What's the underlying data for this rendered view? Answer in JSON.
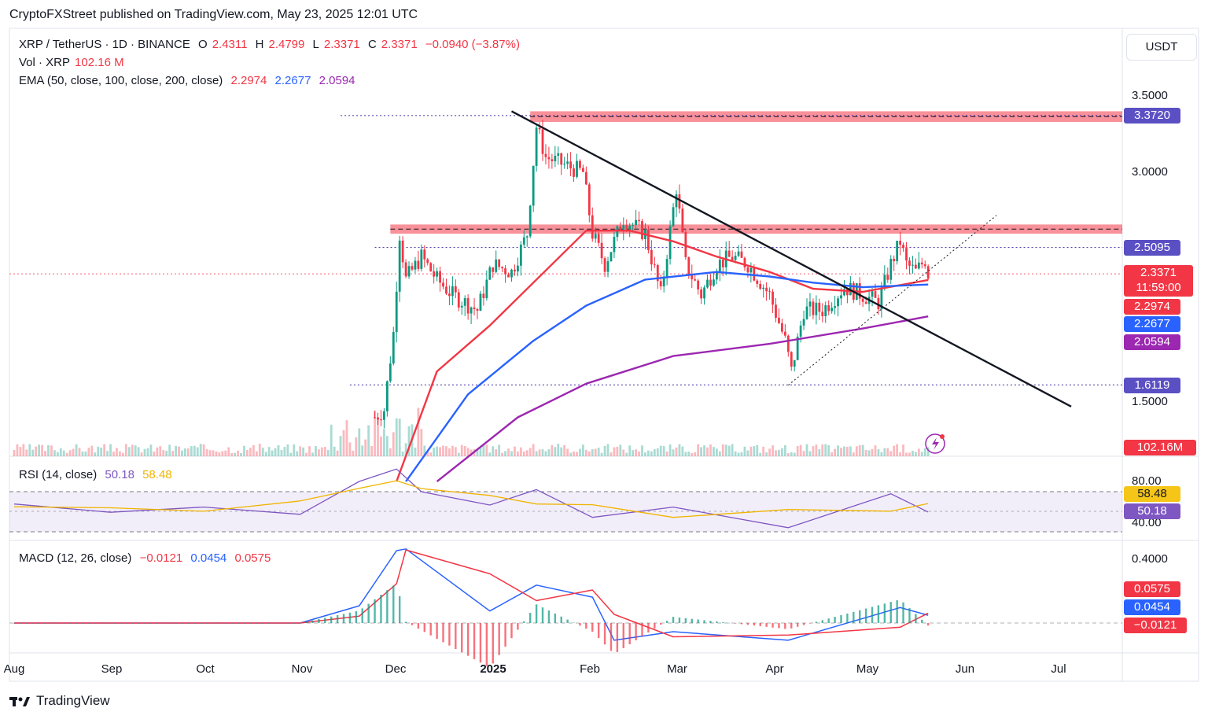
{
  "header": {
    "published": "CryptoFXStreet published on TradingView.com, May 23, 2025 12:01 UTC"
  },
  "legend": {
    "symbol": "XRP / TetherUS · 1D · BINANCE",
    "o_label": "O",
    "o": "2.4311",
    "h_label": "H",
    "h": "2.4799",
    "l_label": "L",
    "l": "2.3371",
    "c_label": "C",
    "c": "2.3371",
    "change": "−0.0940 (−3.87%)",
    "vol_label": "Vol · XRP",
    "vol": "102.16 M",
    "ema_label": "EMA (50, close, 100, close, 200, close)",
    "ema50": "2.2974",
    "ema100": "2.2677",
    "ema200": "2.0594",
    "rsi_label": "RSI (14, close)",
    "rsi": "50.18",
    "rsi_ma": "58.48",
    "macd_label": "MACD (12, 26, close)",
    "macd_hist": "−0.0121",
    "macd": "0.0454",
    "macd_signal": "0.0575"
  },
  "currency_button": "USDT",
  "price_axis": {
    "ticks": [
      "3.5000",
      "3.0000",
      "1.5000"
    ]
  },
  "price_tags": {
    "resistance_top": "3.3720",
    "level_mid": "2.5095",
    "last": "2.3371",
    "countdown": "11:59:00",
    "ema50": "2.2974",
    "ema100": "2.2677",
    "ema200": "2.0594",
    "support": "1.6119",
    "volume": "102.16M"
  },
  "rsi_axis": {
    "ticks": [
      "80.00",
      "40.00"
    ],
    "tag_ma": "58.48",
    "tag_rsi": "50.18"
  },
  "macd_axis": {
    "ticks": [
      "0.4000"
    ],
    "tag_signal": "0.0575",
    "tag_macd": "0.0454",
    "tag_hist": "−0.0121"
  },
  "time_axis": [
    "Aug",
    "Sep",
    "Oct",
    "Nov",
    "Dec",
    "2025",
    "Feb",
    "Mar",
    "Apr",
    "May",
    "Jun",
    "Jul"
  ],
  "brand": "TradingView",
  "colors": {
    "up": "#089981",
    "down": "#f23645",
    "ema50": "#f23645",
    "ema100": "#2962ff",
    "ema200": "#9c27b0",
    "rsi": "#7e57c2",
    "rsi_ma": "#f0b400",
    "zone": "#f23645"
  },
  "chart_data": {
    "type": "candlestick",
    "symbol": "XRP / TetherUS",
    "interval": "1D",
    "last_close": 2.3371,
    "horizontal_levels": [
      3.372,
      2.5095,
      1.6119
    ],
    "resistance_zones": [
      [
        3.33,
        3.4
      ],
      [
        2.6,
        2.66
      ]
    ],
    "ema": {
      "ema50": 2.2974,
      "ema100": 2.2677,
      "ema200": 2.0594
    },
    "ema50_path": [
      [
        "2024-12-02",
        0.98
      ],
      [
        "2024-12-15",
        1.7
      ],
      [
        "2025-01-01",
        2.0
      ],
      [
        "2025-01-15",
        2.28
      ],
      [
        "2025-02-01",
        2.62
      ],
      [
        "2025-02-15",
        2.62
      ],
      [
        "2025-03-01",
        2.55
      ],
      [
        "2025-03-15",
        2.45
      ],
      [
        "2025-04-01",
        2.35
      ],
      [
        "2025-04-15",
        2.24
      ],
      [
        "2025-05-01",
        2.22
      ],
      [
        "2025-05-22",
        2.2974
      ]
    ],
    "ema100_path": [
      [
        "2024-12-05",
        0.98
      ],
      [
        "2024-12-25",
        1.55
      ],
      [
        "2025-01-15",
        1.9
      ],
      [
        "2025-02-01",
        2.13
      ],
      [
        "2025-02-20",
        2.3
      ],
      [
        "2025-03-15",
        2.35
      ],
      [
        "2025-04-01",
        2.32
      ],
      [
        "2025-04-15",
        2.28
      ],
      [
        "2025-05-01",
        2.25
      ],
      [
        "2025-05-22",
        2.2677
      ]
    ],
    "ema200_path": [
      [
        "2024-12-15",
        0.98
      ],
      [
        "2025-01-10",
        1.4
      ],
      [
        "2025-02-01",
        1.62
      ],
      [
        "2025-03-01",
        1.8
      ],
      [
        "2025-04-01",
        1.88
      ],
      [
        "2025-05-01",
        1.98
      ],
      [
        "2025-05-22",
        2.0594
      ]
    ],
    "close_path": [
      [
        "2024-11-25",
        1.4
      ],
      [
        "2024-11-28",
        1.45
      ],
      [
        "2024-12-01",
        1.95
      ],
      [
        "2024-12-03",
        2.6
      ],
      [
        "2024-12-05",
        2.3
      ],
      [
        "2024-12-10",
        2.45
      ],
      [
        "2024-12-15",
        2.3
      ],
      [
        "2024-12-20",
        2.2
      ],
      [
        "2024-12-28",
        2.1
      ],
      [
        "2025-01-02",
        2.4
      ],
      [
        "2025-01-08",
        2.35
      ],
      [
        "2025-01-13",
        2.6
      ],
      [
        "2025-01-16",
        3.3
      ],
      [
        "2025-01-19",
        3.1
      ],
      [
        "2025-01-25",
        3.05
      ],
      [
        "2025-01-31",
        3.0
      ],
      [
        "2025-02-03",
        2.6
      ],
      [
        "2025-02-07",
        2.4
      ],
      [
        "2025-02-13",
        2.7
      ],
      [
        "2025-02-20",
        2.6
      ],
      [
        "2025-02-25",
        2.2
      ],
      [
        "2025-03-02",
        2.9
      ],
      [
        "2025-03-05",
        2.4
      ],
      [
        "2025-03-10",
        2.2
      ],
      [
        "2025-03-15",
        2.4
      ],
      [
        "2025-03-20",
        2.45
      ],
      [
        "2025-03-25",
        2.4
      ],
      [
        "2025-04-01",
        2.2
      ],
      [
        "2025-04-06",
        1.9
      ],
      [
        "2025-04-08",
        1.7
      ],
      [
        "2025-04-12",
        2.1
      ],
      [
        "2025-04-18",
        2.1
      ],
      [
        "2025-04-25",
        2.25
      ],
      [
        "2025-05-01",
        2.2
      ],
      [
        "2025-05-06",
        2.15
      ],
      [
        "2025-05-10",
        2.4
      ],
      [
        "2025-05-13",
        2.55
      ],
      [
        "2025-05-15",
        2.4
      ],
      [
        "2025-05-18",
        2.35
      ],
      [
        "2025-05-21",
        2.43
      ],
      [
        "2025-05-22",
        2.3371
      ]
    ],
    "trendlines": [
      {
        "name": "descending",
        "from": [
          "2025-01-08",
          3.4
        ],
        "to": [
          "2025-07-07",
          1.47
        ]
      },
      {
        "name": "ascending-support",
        "from": [
          "2025-04-07",
          1.61
        ],
        "to": [
          "2025-06-13",
          2.72
        ]
      }
    ],
    "rsi": {
      "value": 50.18,
      "ma": 58.48,
      "upper_band": 70,
      "lower_band": 30,
      "path": [
        [
          "2024-08-01",
          58
        ],
        [
          "2024-09-01",
          50
        ],
        [
          "2024-10-01",
          55
        ],
        [
          "2024-11-01",
          48
        ],
        [
          "2024-11-20",
          80
        ],
        [
          "2024-12-02",
          92
        ],
        [
          "2024-12-10",
          70
        ],
        [
          "2025-01-01",
          57
        ],
        [
          "2025-01-16",
          72
        ],
        [
          "2025-02-03",
          45
        ],
        [
          "2025-03-01",
          55
        ],
        [
          "2025-04-07",
          35
        ],
        [
          "2025-05-10",
          68
        ],
        [
          "2025-05-22",
          50.18
        ]
      ]
    },
    "macd": {
      "hist": -0.0121,
      "macd": 0.0454,
      "signal": 0.0575,
      "path": [
        [
          "2024-08-01",
          0.0
        ],
        [
          "2024-11-01",
          0.0
        ],
        [
          "2024-11-20",
          0.1
        ],
        [
          "2024-12-02",
          0.42
        ],
        [
          "2024-12-05",
          0.43
        ],
        [
          "2025-01-01",
          0.07
        ],
        [
          "2025-01-16",
          0.22
        ],
        [
          "2025-02-03",
          0.15
        ],
        [
          "2025-02-10",
          -0.1
        ],
        [
          "2025-03-01",
          -0.05
        ],
        [
          "2025-04-07",
          -0.1
        ],
        [
          "2025-05-13",
          0.09
        ],
        [
          "2025-05-22",
          0.0454
        ]
      ]
    }
  }
}
